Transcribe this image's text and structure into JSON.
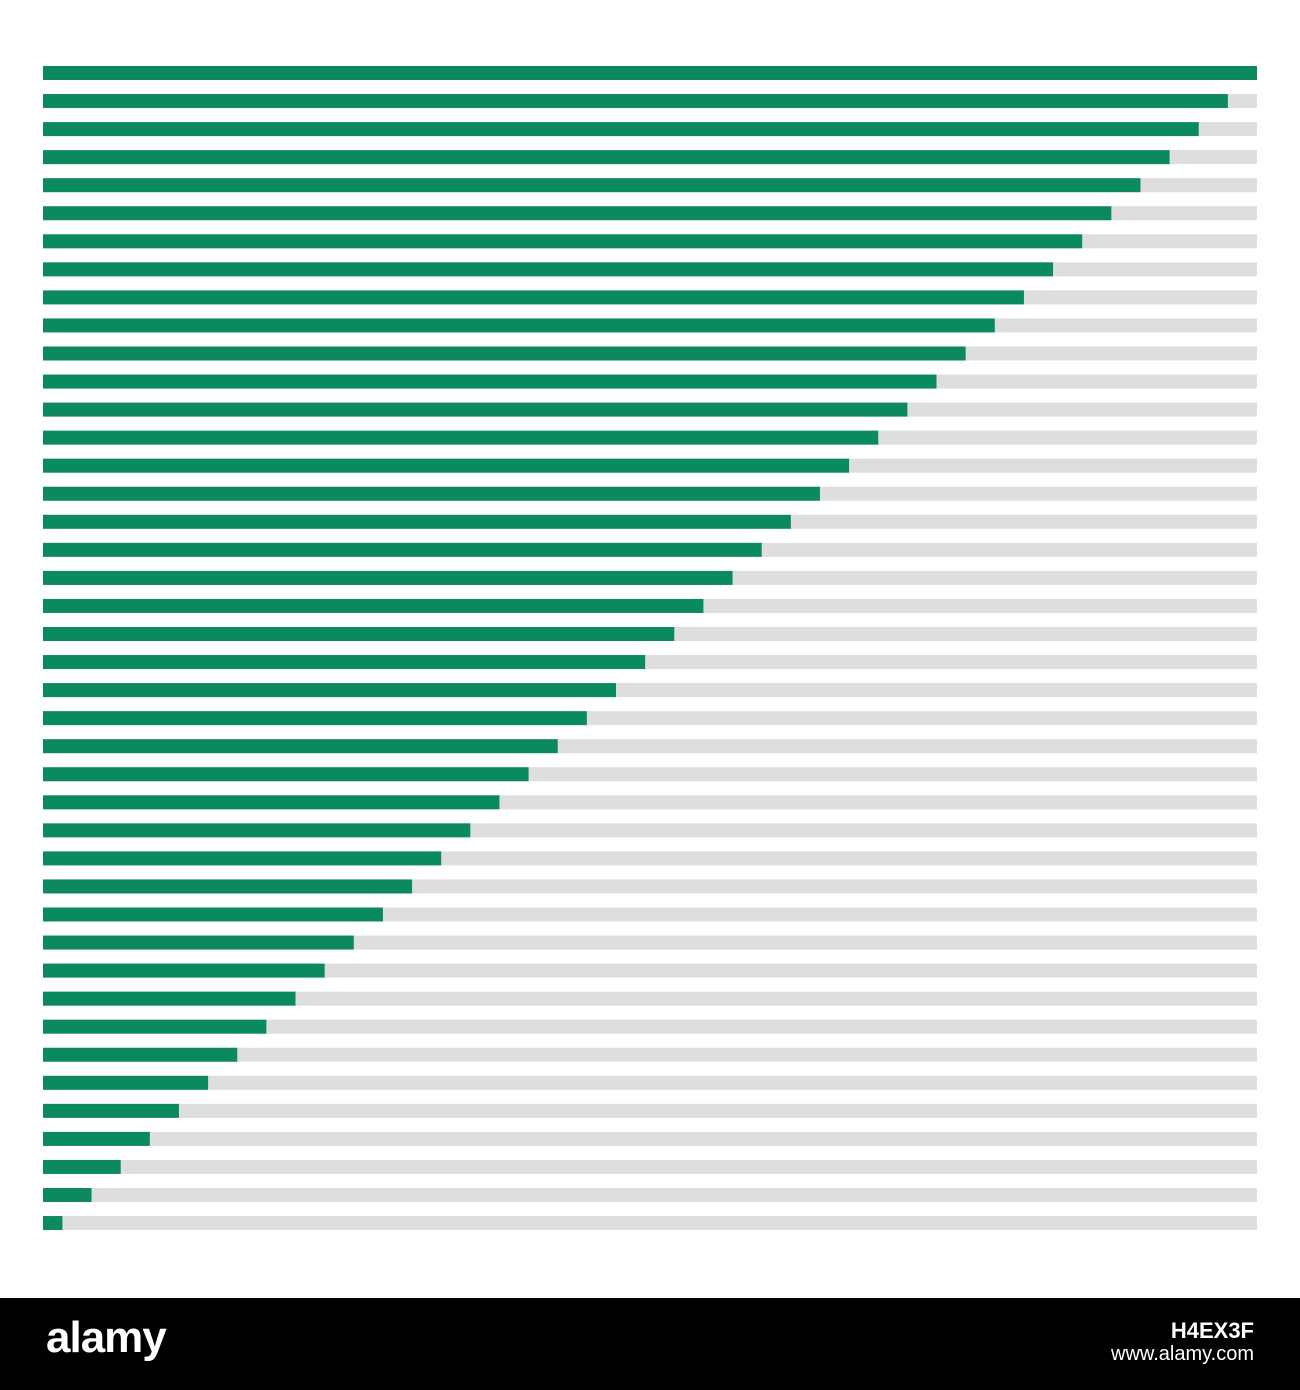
{
  "chart_data": {
    "type": "bar",
    "orientation": "horizontal",
    "stacked_with_remainder": true,
    "title": "",
    "xlabel": "",
    "ylabel": "",
    "xlim": [
      0,
      100
    ],
    "grid": false,
    "legend": "none",
    "values": [
      100,
      97.6,
      95.2,
      92.8,
      90.4,
      88.0,
      85.6,
      83.2,
      80.8,
      78.4,
      76.0,
      73.6,
      71.2,
      68.8,
      66.4,
      64.0,
      61.6,
      59.2,
      56.8,
      54.4,
      52.0,
      49.6,
      47.2,
      44.8,
      42.4,
      40.0,
      37.6,
      35.2,
      32.8,
      30.4,
      28.0,
      25.6,
      23.2,
      20.8,
      18.4,
      16.0,
      13.6,
      11.2,
      8.8,
      6.4,
      4.0,
      1.6
    ]
  },
  "colors": {
    "bar": "#0a8a5e",
    "track": "#dedede",
    "background": "#ffffff",
    "watermark_band": "#000000",
    "watermark_text": "#ffffff"
  },
  "watermark": {
    "logo": "alamy",
    "image_id": "H4EX3F",
    "site": "www.alamy.com"
  }
}
